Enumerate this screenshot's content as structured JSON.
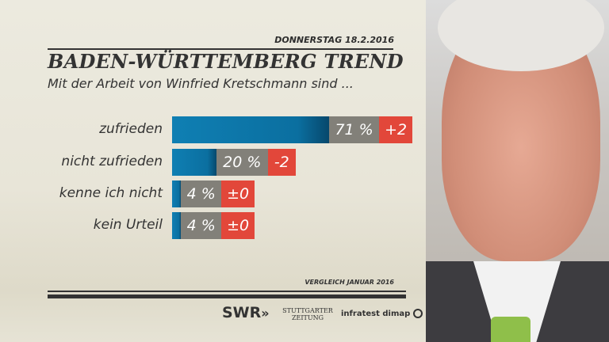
{
  "header": {
    "date": "DONNERSTAG  18.2.2016",
    "title": "BADEN-WÜRTTEMBERG TREND",
    "subtitle": "Mit der Arbeit von Winfried Kretschmann sind ..."
  },
  "chart_data": {
    "type": "bar",
    "orientation": "horizontal",
    "categories": [
      "zufrieden",
      "nicht zufrieden",
      "kenne ich nicht",
      "kein Urteil"
    ],
    "values": [
      71,
      20,
      4,
      4
    ],
    "value_labels": [
      "71 %",
      "20 %",
      "4 %",
      "4 %"
    ],
    "changes": [
      "+2",
      "-2",
      "±0",
      "±0"
    ],
    "unit": "%",
    "colors": {
      "bar": "#0f7fb3",
      "value_box": "#828079",
      "change_box": "#e2473a"
    },
    "grid": false
  },
  "footer": {
    "note": "VERGLEICH JANUAR 2016",
    "logos": [
      "SWR",
      "STUTTGARTER ZEITUNG",
      "infratest dimap"
    ]
  }
}
